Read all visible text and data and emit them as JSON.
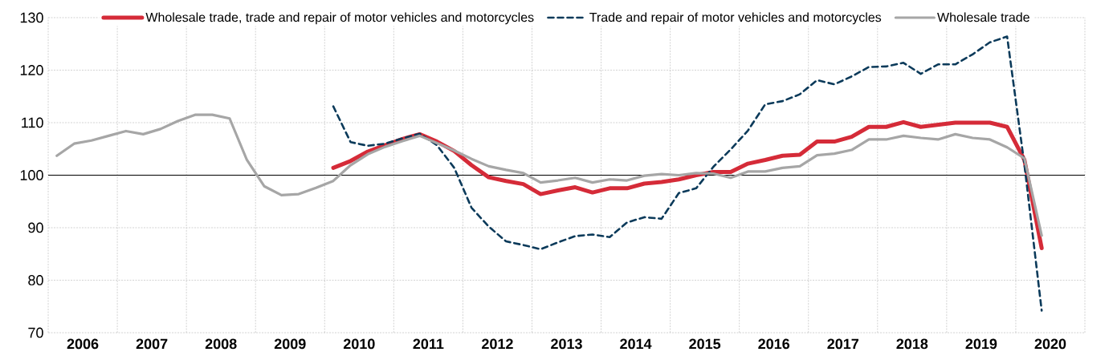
{
  "chart_data": {
    "type": "line",
    "x": [
      2006.125,
      2006.375,
      2006.625,
      2006.875,
      2007.125,
      2007.375,
      2007.625,
      2007.875,
      2008.125,
      2008.375,
      2008.625,
      2008.875,
      2009.125,
      2009.375,
      2009.625,
      2009.875,
      2010.125,
      2010.375,
      2010.625,
      2010.875,
      2011.125,
      2011.375,
      2011.625,
      2011.875,
      2012.125,
      2012.375,
      2012.625,
      2012.875,
      2013.125,
      2013.375,
      2013.625,
      2013.875,
      2014.125,
      2014.375,
      2014.625,
      2014.875,
      2015.125,
      2015.375,
      2015.625,
      2015.875,
      2016.125,
      2016.375,
      2016.625,
      2016.875,
      2017.125,
      2017.375,
      2017.625,
      2017.875,
      2018.125,
      2018.375,
      2018.625,
      2018.875,
      2019.125,
      2019.375,
      2019.625,
      2019.875,
      2020.125,
      2020.375
    ],
    "series": [
      {
        "name": "Wholesale trade, trade and repair of motor vehicles and motorcycles",
        "color": "#d52b38",
        "values": [
          null,
          null,
          null,
          null,
          null,
          null,
          null,
          null,
          null,
          null,
          null,
          null,
          null,
          null,
          null,
          null,
          101.4,
          102.7,
          104.5,
          105.7,
          106.9,
          107.8,
          106.4,
          104.6,
          101.9,
          99.6,
          98.9,
          98.3,
          96.4,
          97.1,
          97.7,
          96.7,
          97.5,
          97.5,
          98.4,
          98.7,
          99.2,
          100.0,
          100.6,
          100.6,
          102.2,
          102.9,
          103.7,
          103.9,
          106.4,
          106.4,
          107.3,
          109.2,
          109.2,
          110.1,
          109.2,
          109.6,
          110.0,
          110.0,
          110.0,
          109.2,
          102.9,
          86.1
        ]
      },
      {
        "name": "Trade and repair of motor vehicles and motorcycles",
        "color": "#0b3a5a",
        "line_style": "dashed",
        "values": [
          null,
          null,
          null,
          null,
          null,
          null,
          null,
          null,
          null,
          null,
          null,
          null,
          null,
          null,
          null,
          null,
          113.1,
          106.3,
          105.6,
          106.0,
          107.0,
          107.9,
          105.7,
          101.4,
          93.8,
          90.2,
          87.4,
          86.7,
          85.9,
          87.2,
          88.4,
          88.7,
          88.2,
          91.0,
          92.0,
          91.7,
          96.6,
          97.5,
          101.6,
          104.9,
          108.5,
          113.5,
          114.1,
          115.4,
          118.1,
          117.3,
          118.8,
          120.6,
          120.7,
          121.4,
          119.3,
          121.1,
          121.1,
          123.0,
          125.3,
          126.4,
          102.0,
          74.2
        ]
      },
      {
        "name": "Wholesale trade",
        "color": "#a6a6a6",
        "values": [
          103.7,
          106.0,
          106.6,
          107.5,
          108.4,
          107.8,
          108.8,
          110.3,
          111.5,
          111.5,
          110.8,
          102.9,
          97.9,
          96.2,
          96.4,
          97.6,
          98.9,
          101.9,
          104.0,
          105.4,
          106.5,
          107.5,
          106.1,
          104.7,
          103.1,
          101.7,
          101.0,
          100.4,
          98.6,
          99.0,
          99.5,
          98.6,
          99.2,
          99.0,
          99.9,
          100.2,
          100.0,
          100.4,
          100.3,
          99.5,
          100.7,
          100.7,
          101.4,
          101.7,
          103.8,
          104.1,
          104.8,
          106.8,
          106.8,
          107.5,
          107.1,
          106.8,
          107.8,
          107.1,
          106.8,
          105.3,
          103.2,
          88.5
        ]
      }
    ],
    "xlim": [
      2006,
      2021
    ],
    "xticks": [
      {
        "value": 2006,
        "label": null
      },
      {
        "value": 2006.5,
        "label": "2006"
      },
      {
        "value": 2007,
        "label": null
      },
      {
        "value": 2007.5,
        "label": "2007"
      },
      {
        "value": 2008,
        "label": null
      },
      {
        "value": 2008.5,
        "label": "2008"
      },
      {
        "value": 2009,
        "label": null
      },
      {
        "value": 2009.5,
        "label": "2009"
      },
      {
        "value": 2010,
        "label": null
      },
      {
        "value": 2010.5,
        "label": "2010"
      },
      {
        "value": 2011,
        "label": null
      },
      {
        "value": 2011.5,
        "label": "2011"
      },
      {
        "value": 2012,
        "label": null
      },
      {
        "value": 2012.5,
        "label": "2012"
      },
      {
        "value": 2013,
        "label": null
      },
      {
        "value": 2013.5,
        "label": "2013"
      },
      {
        "value": 2014,
        "label": null
      },
      {
        "value": 2014.5,
        "label": "2014"
      },
      {
        "value": 2015,
        "label": null
      },
      {
        "value": 2015.5,
        "label": "2015"
      },
      {
        "value": 2016,
        "label": null
      },
      {
        "value": 2016.5,
        "label": "2016"
      },
      {
        "value": 2017,
        "label": null
      },
      {
        "value": 2017.5,
        "label": "2017"
      },
      {
        "value": 2018,
        "label": null
      },
      {
        "value": 2018.5,
        "label": "2018"
      },
      {
        "value": 2019,
        "label": null
      },
      {
        "value": 2019.5,
        "label": "2019"
      },
      {
        "value": 2020,
        "label": null
      },
      {
        "value": 2020.5,
        "label": "2020"
      },
      {
        "value": 2021,
        "label": null
      }
    ],
    "ylim": [
      70,
      130
    ],
    "yticks": [
      70,
      80,
      90,
      100,
      110,
      120,
      130
    ],
    "ref_lines": [
      {
        "axis": "y",
        "value": 100,
        "color": "#000000"
      }
    ],
    "grid": true,
    "legend": "top"
  }
}
